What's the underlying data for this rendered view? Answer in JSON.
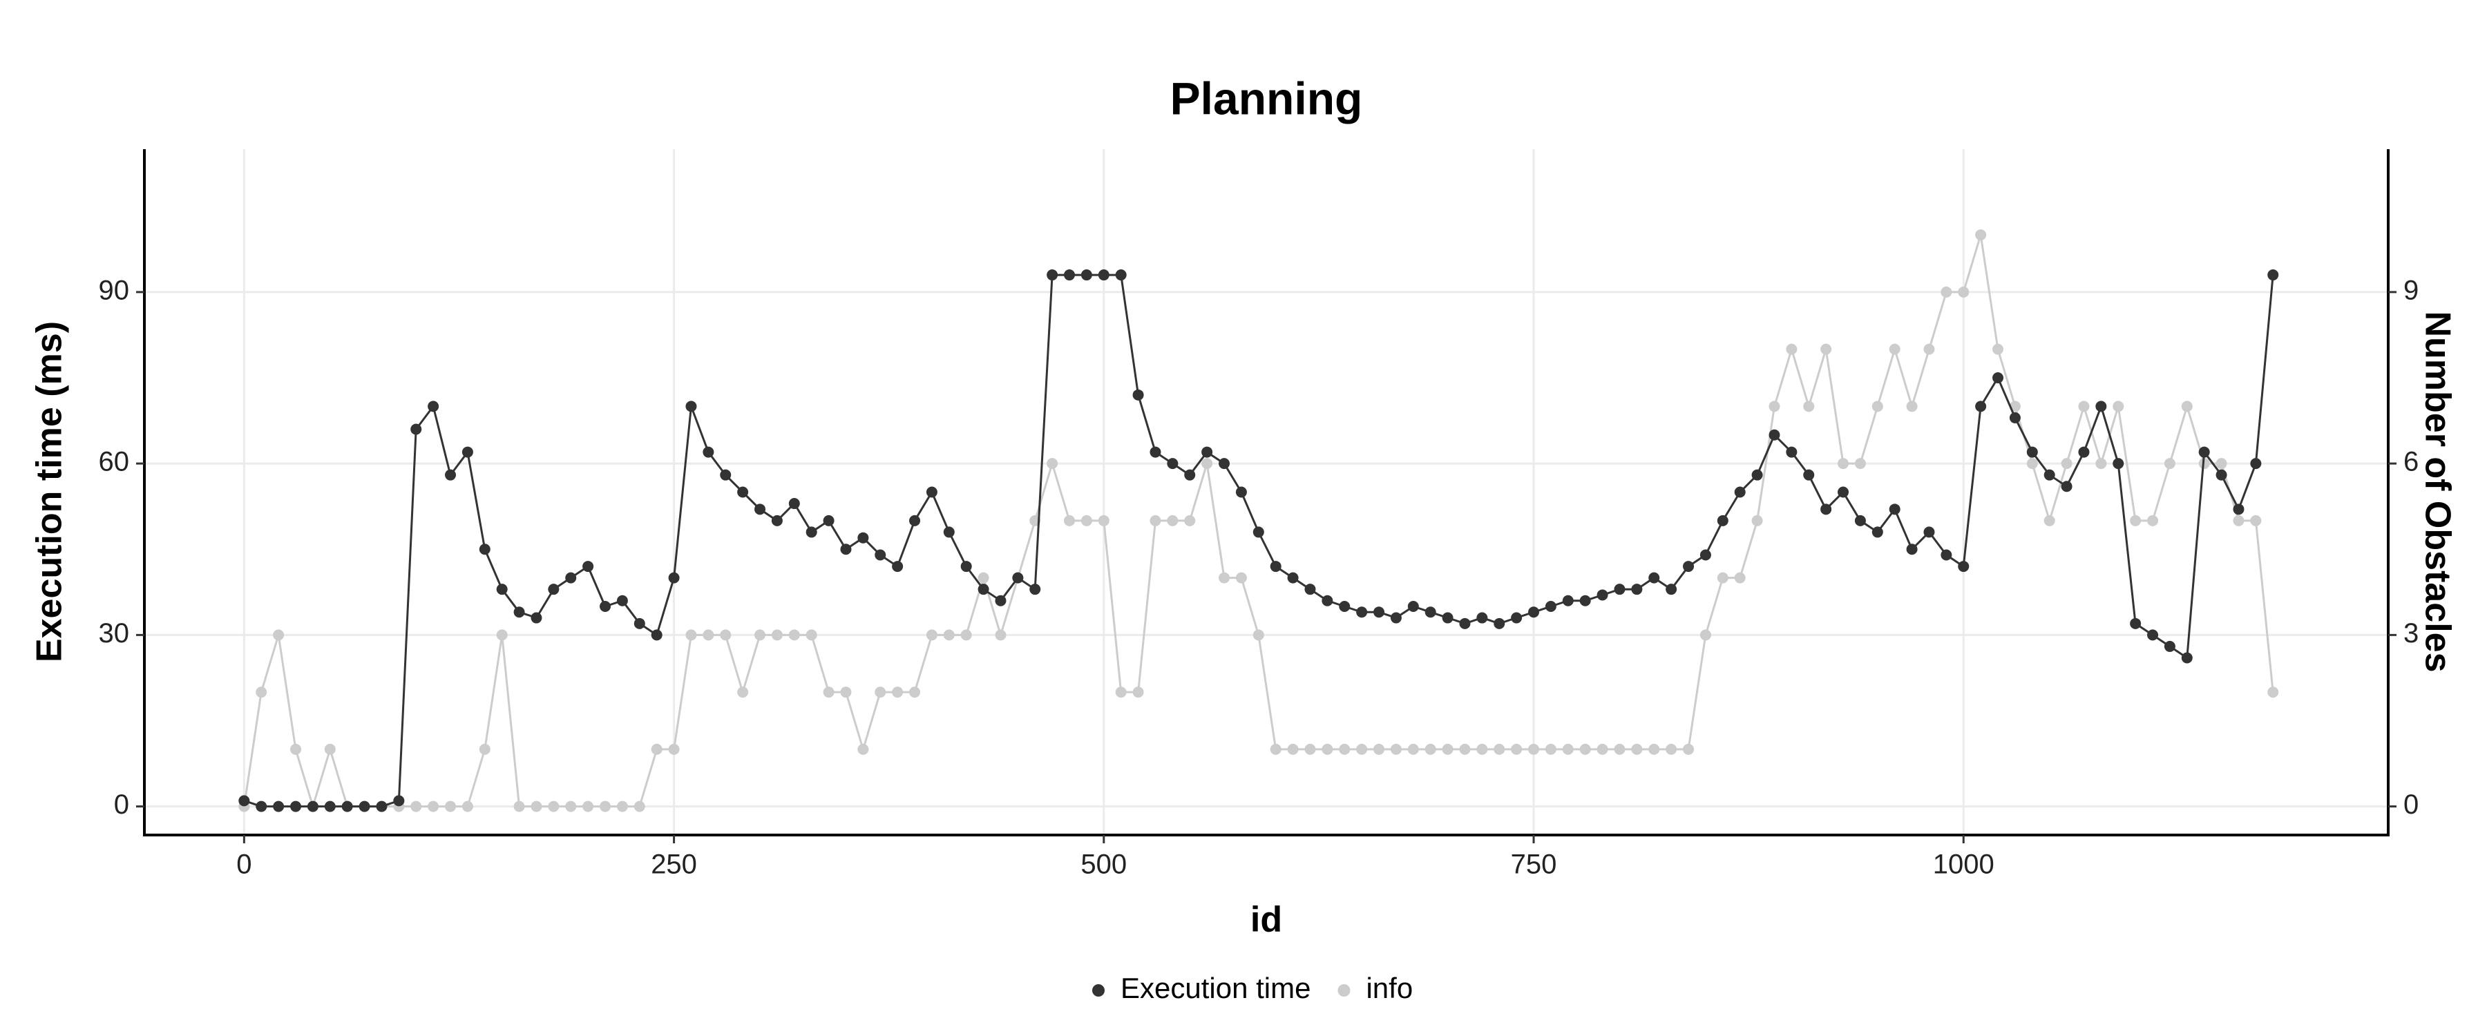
{
  "chart_data": {
    "type": "line",
    "title": "Planning",
    "xlabel": "id",
    "ylabel": "Execution time (ms)",
    "y2label": "Number of Obstacles",
    "x": [
      0,
      10,
      20,
      30,
      40,
      50,
      60,
      70,
      80,
      90,
      100,
      110,
      120,
      130,
      140,
      150,
      160,
      170,
      180,
      190,
      200,
      210,
      220,
      230,
      240,
      250,
      260,
      270,
      280,
      290,
      300,
      310,
      320,
      330,
      340,
      350,
      360,
      370,
      380,
      390,
      400,
      410,
      420,
      430,
      440,
      450,
      460,
      470,
      480,
      490,
      500,
      510,
      520,
      530,
      540,
      550,
      560,
      570,
      580,
      590,
      600,
      610,
      620,
      630,
      640,
      650,
      660,
      670,
      680,
      690,
      700,
      710,
      720,
      730,
      740,
      750,
      760,
      770,
      780,
      790,
      800,
      810,
      820,
      830,
      840,
      850,
      860,
      870,
      880,
      890,
      900,
      910,
      920,
      930,
      940,
      950,
      960,
      970,
      980,
      990,
      1000,
      1010,
      1020,
      1030,
      1040,
      1050,
      1060,
      1070,
      1080,
      1090,
      1100,
      1110,
      1120,
      1130,
      1140,
      1150,
      1160,
      1170,
      1180
    ],
    "series": [
      {
        "name": "Execution time",
        "color": "#333333",
        "axis": "y",
        "values": [
          1,
          0,
          0,
          0,
          0,
          0,
          0,
          0,
          0,
          1,
          66,
          70,
          58,
          62,
          45,
          38,
          34,
          33,
          38,
          40,
          42,
          35,
          36,
          32,
          30,
          40,
          70,
          62,
          58,
          55,
          52,
          50,
          53,
          48,
          50,
          45,
          47,
          44,
          42,
          50,
          55,
          48,
          42,
          38,
          36,
          40,
          38,
          93,
          93,
          93,
          93,
          93,
          72,
          62,
          60,
          58,
          62,
          60,
          55,
          48,
          42,
          40,
          38,
          36,
          35,
          34,
          34,
          33,
          35,
          34,
          33,
          32,
          33,
          32,
          33,
          34,
          35,
          36,
          36,
          37,
          38,
          38,
          40,
          38,
          42,
          44,
          50,
          55,
          58,
          65,
          62,
          58,
          52,
          55,
          50,
          48,
          52,
          45,
          48,
          44,
          42,
          70,
          75,
          68,
          62,
          58,
          56,
          62,
          70,
          60,
          32,
          30,
          28,
          26,
          62,
          58,
          52,
          60,
          93
        ]
      },
      {
        "name": "info",
        "color": "#cccccc",
        "axis": "y2",
        "values": [
          0,
          2,
          3,
          1,
          0,
          1,
          0,
          0,
          0,
          0,
          0,
          0,
          0,
          0,
          1,
          3,
          0,
          0,
          0,
          0,
          0,
          0,
          0,
          0,
          1,
          1,
          3,
          3,
          3,
          2,
          3,
          3,
          3,
          3,
          2,
          2,
          1,
          2,
          2,
          2,
          3,
          3,
          3,
          4,
          3,
          4,
          5,
          6,
          5,
          5,
          5,
          2,
          2,
          5,
          5,
          5,
          6,
          4,
          4,
          3,
          1,
          1,
          1,
          1,
          1,
          1,
          1,
          1,
          1,
          1,
          1,
          1,
          1,
          1,
          1,
          1,
          1,
          1,
          1,
          1,
          1,
          1,
          1,
          1,
          1,
          3,
          4,
          4,
          5,
          7,
          8,
          7,
          8,
          6,
          6,
          7,
          8,
          7,
          8,
          9,
          9,
          10,
          8,
          7,
          6,
          5,
          6,
          7,
          6,
          7,
          5,
          5,
          6,
          7,
          6,
          6,
          5,
          5,
          2
        ]
      }
    ],
    "xlim": [
      -58,
      1247
    ],
    "ylim": [
      -5,
      115
    ],
    "y2lim": [
      -0.5,
      11.5
    ],
    "xticks": [
      0,
      250,
      500,
      750,
      1000
    ],
    "yticks": [
      0,
      30,
      60,
      90
    ],
    "y2ticks": [
      0,
      3,
      6,
      9
    ],
    "grid": true,
    "legend": "bottom"
  }
}
